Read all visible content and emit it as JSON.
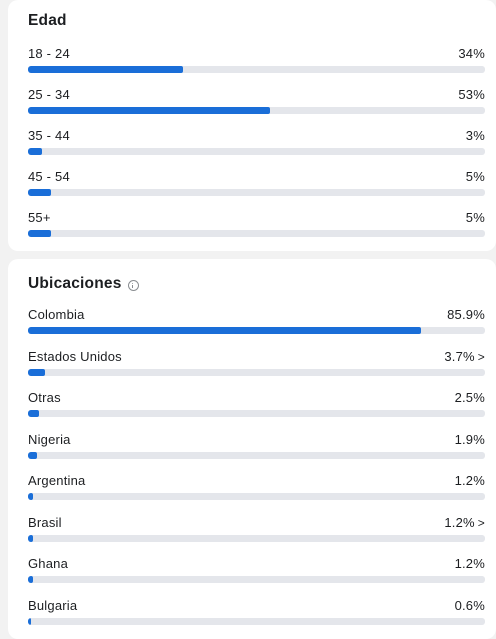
{
  "age_section": {
    "title": "Edad",
    "rows": [
      {
        "label": "18 - 24",
        "value": "34%",
        "percent": 34
      },
      {
        "label": "25 - 34",
        "value": "53%",
        "percent": 53
      },
      {
        "label": "35 - 44",
        "value": "3%",
        "percent": 3
      },
      {
        "label": "45 - 54",
        "value": "5%",
        "percent": 5
      },
      {
        "label": "55+",
        "value": "5%",
        "percent": 5
      }
    ]
  },
  "locations_section": {
    "title": "Ubicaciones",
    "info_icon": "info-icon",
    "rows": [
      {
        "label": "Colombia",
        "value": "85.9%",
        "percent": 85.9,
        "has_chevron": false
      },
      {
        "label": "Estados Unidos",
        "value": "3.7%",
        "percent": 3.7,
        "has_chevron": true
      },
      {
        "label": "Otras",
        "value": "2.5%",
        "percent": 2.5,
        "has_chevron": false
      },
      {
        "label": "Nigeria",
        "value": "1.9%",
        "percent": 1.9,
        "has_chevron": false
      },
      {
        "label": "Argentina",
        "value": "1.2%",
        "percent": 1.2,
        "has_chevron": false
      },
      {
        "label": "Brasil",
        "value": "1.2%",
        "percent": 1.2,
        "has_chevron": true
      },
      {
        "label": "Ghana",
        "value": "1.2%",
        "percent": 1.2,
        "has_chevron": false
      },
      {
        "label": "Bulgaria",
        "value": "0.6%",
        "percent": 0.6,
        "has_chevron": false
      }
    ]
  },
  "colors": {
    "bar_fill": "#1a6ed8",
    "bar_track": "#e4e6eb",
    "card_background": "#ffffff",
    "page_background": "#f2f2f2"
  }
}
